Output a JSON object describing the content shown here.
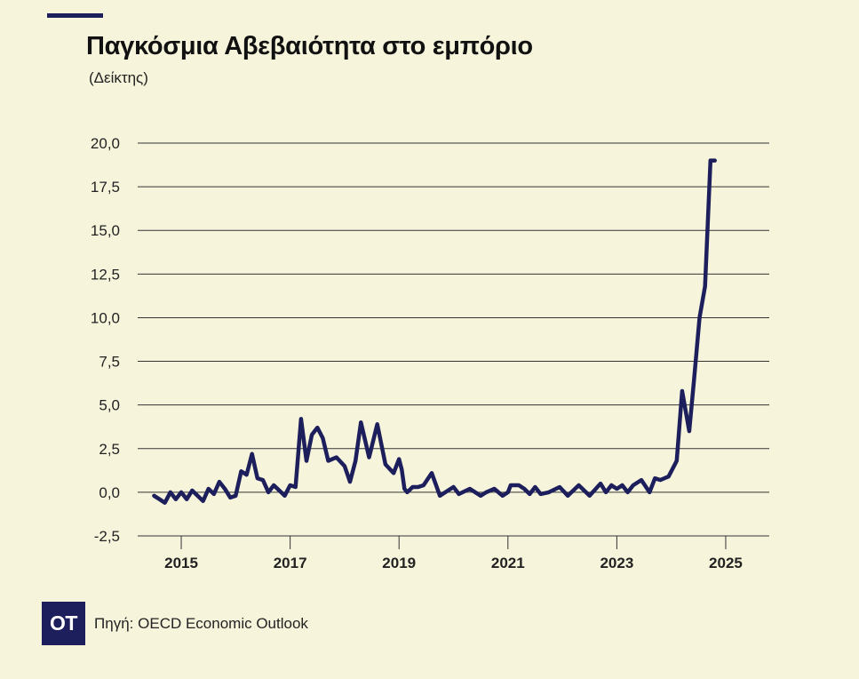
{
  "header": {
    "title": "Παγκόσμια Αβεβαιότητα στο εμπόριο",
    "subtitle": "(Δείκτης)"
  },
  "footer": {
    "logo_text": "OT",
    "source": "Πηγή: OECD Economic Outlook"
  },
  "colors": {
    "background": "#f7f4dc",
    "line": "#1d1f5c",
    "grid": "#333333"
  },
  "chart_data": {
    "type": "line",
    "title": "Παγκόσμια Αβεβαιότητα στο εμπόριο",
    "subtitle": "(Δείκτης)",
    "xlabel": "",
    "ylabel": "",
    "xlim": [
      2014.2,
      2025.8
    ],
    "ylim": [
      -2.5,
      20.0
    ],
    "y_ticks": [
      -2.5,
      0.0,
      2.5,
      5.0,
      7.5,
      10.0,
      12.5,
      15.0,
      17.5,
      20.0
    ],
    "y_tick_labels": [
      "-2,5",
      "0,0",
      "2,5",
      "5,0",
      "7,5",
      "10,0",
      "12,5",
      "15,0",
      "17,5",
      "20,0"
    ],
    "x_ticks": [
      2015,
      2017,
      2019,
      2021,
      2023,
      2025
    ],
    "x_tick_labels": [
      "2015",
      "2017",
      "2019",
      "2021",
      "2023",
      "2025"
    ],
    "grid": "horizontal",
    "series": [
      {
        "x": [
          2014.5,
          2014.6,
          2014.7,
          2014.8,
          2014.9,
          2015.0,
          2015.1,
          2015.2,
          2015.3,
          2015.4,
          2015.5,
          2015.6,
          2015.7,
          2015.8,
          2015.9,
          2016.0,
          2016.1,
          2016.2,
          2016.3,
          2016.4,
          2016.5,
          2016.6,
          2016.7,
          2016.8,
          2016.9,
          2017.0,
          2017.1,
          2017.2,
          2017.3,
          2017.4,
          2017.5,
          2017.6,
          2017.7,
          2017.85,
          2018.0,
          2018.1,
          2018.2,
          2018.3,
          2018.45,
          2018.6,
          2018.75,
          2018.9,
          2019.0,
          2019.05,
          2019.1,
          2019.15,
          2019.25,
          2019.35,
          2019.45,
          2019.6,
          2019.75,
          2019.9,
          2020.0,
          2020.1,
          2020.3,
          2020.5,
          2020.6,
          2020.75,
          2020.9,
          2021.0,
          2021.05,
          2021.2,
          2021.3,
          2021.4,
          2021.5,
          2021.6,
          2021.75,
          2021.95,
          2022.1,
          2022.3,
          2022.5,
          2022.7,
          2022.8,
          2022.9,
          2023.0,
          2023.1,
          2023.2,
          2023.3,
          2023.45,
          2023.6,
          2023.7,
          2023.8,
          2023.95,
          2024.1,
          2024.2,
          2024.33,
          2024.42,
          2024.52,
          2024.62,
          2024.72,
          2024.78,
          2024.8
        ],
        "values": [
          -0.2,
          -0.4,
          -0.6,
          0.0,
          -0.4,
          0.0,
          -0.4,
          0.1,
          -0.2,
          -0.5,
          0.2,
          -0.1,
          0.6,
          0.2,
          -0.3,
          -0.2,
          1.2,
          1.0,
          2.2,
          0.8,
          0.7,
          0.0,
          0.4,
          0.1,
          -0.2,
          0.4,
          0.3,
          4.2,
          1.8,
          3.3,
          3.7,
          3.1,
          1.8,
          2.0,
          1.5,
          0.6,
          1.8,
          4.0,
          2.0,
          3.9,
          1.6,
          1.1,
          1.9,
          1.3,
          0.2,
          0.0,
          0.3,
          0.3,
          0.4,
          1.1,
          -0.2,
          0.1,
          0.3,
          -0.1,
          0.2,
          -0.2,
          0.0,
          0.2,
          -0.2,
          0.0,
          0.4,
          0.4,
          0.2,
          -0.1,
          0.3,
          -0.1,
          0.0,
          0.3,
          -0.2,
          0.4,
          -0.2,
          0.5,
          0.0,
          0.4,
          0.2,
          0.4,
          0.0,
          0.4,
          0.7,
          0.0,
          0.8,
          0.7,
          0.9,
          1.8,
          5.8,
          3.5,
          6.5,
          10.0,
          11.8,
          19.0,
          19.0,
          19.0
        ]
      }
    ]
  }
}
